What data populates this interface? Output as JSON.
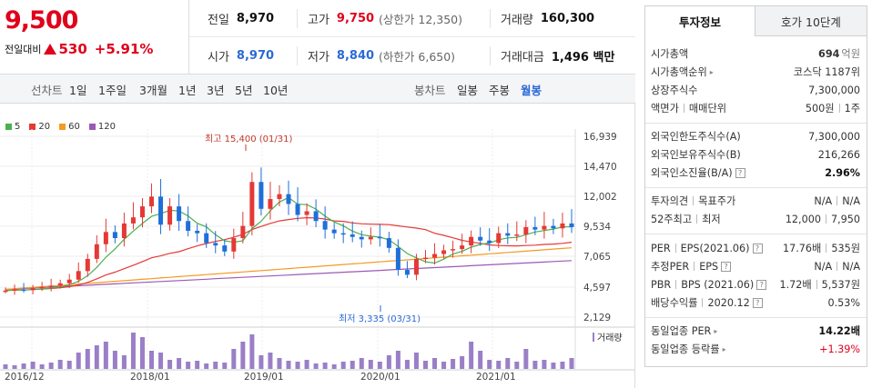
{
  "price": {
    "current": "9,500",
    "change_label": "전일대비",
    "change_amount": "530",
    "change_rate": "+5.91%"
  },
  "summary": {
    "prev_close_label": "전일",
    "prev_close": "8,970",
    "high_label": "고가",
    "high": "9,750",
    "upper_limit": "(상한가 12,350)",
    "volume_label": "거래량",
    "volume": "160,300",
    "open_label": "시가",
    "open": "8,970",
    "low_label": "저가",
    "low": "8,840",
    "lower_limit": "(하한가 6,650)",
    "amount_label": "거래대금",
    "amount": "1,496 백만"
  },
  "toolbar": {
    "line_chart": "선차트",
    "periods": [
      "1일",
      "1주일",
      "3개월",
      "1년",
      "3년",
      "5년",
      "10년"
    ],
    "candle_chart": "봉차트",
    "candles": [
      "일봉",
      "주봉",
      "월봉"
    ],
    "selected_candle": "월봉"
  },
  "legend": [
    {
      "label": "5",
      "color": "#4caf50"
    },
    {
      "label": "20",
      "color": "#e53935"
    },
    {
      "label": "60",
      "color": "#f59a23"
    },
    {
      "label": "120",
      "color": "#9b59b6"
    }
  ],
  "chart_data": {
    "type": "candlestick",
    "y_ticks": [
      "16,939",
      "14,470",
      "12,002",
      "9,534",
      "7,065",
      "4,597",
      "2,129"
    ],
    "x_ticks": [
      "2016/12",
      "2018/01",
      "2019/01",
      "2020/01",
      "2021/01"
    ],
    "annotations": {
      "high": "최고 15,400 (01/31)",
      "low": "최저 3,335 (03/31)"
    },
    "volume_legend": "거래량",
    "ylim": [
      2129,
      16939
    ]
  },
  "panel": {
    "tab_info": "투자정보",
    "tab_hoga": "호가 10단계",
    "rows": [
      {
        "k": "시가총액",
        "v": "694",
        "unit": "억원"
      },
      {
        "k": "시가총액순위",
        "v": "코스닥 1187위"
      },
      {
        "k": "상장주식수",
        "v": "7,300,000"
      },
      {
        "k": "액면가",
        "k2": "매매단위",
        "v": "500원",
        "v2": "1주"
      },
      {
        "k": "외국인한도주식수(A)",
        "v": "7,300,000"
      },
      {
        "k": "외국인보유주식수(B)",
        "v": "216,266"
      },
      {
        "k": "외국인소진율(B/A)",
        "v": "2.96%"
      },
      {
        "k": "투자의견",
        "k2": "목표주가",
        "v": "N/A",
        "v2": "N/A"
      },
      {
        "k": "52주최고",
        "k2": "최저",
        "v": "12,000",
        "v2": "7,950"
      },
      {
        "k": "PER",
        "k2": "EPS(2021.06)",
        "v": "17.76배",
        "v2": "535원"
      },
      {
        "k": "추정PER",
        "k2": "EPS",
        "v": "N/A",
        "v2": "N/A"
      },
      {
        "k": "PBR",
        "k2": "BPS (2021.06)",
        "v": "1.72배",
        "v2": "5,537원"
      },
      {
        "k": "배당수익률",
        "k2": "2020.12",
        "v": "0.53%"
      },
      {
        "k": "동일업종 PER",
        "v": "14.22배"
      },
      {
        "k": "동일업종 등락률",
        "v": "+1.39%"
      }
    ]
  }
}
